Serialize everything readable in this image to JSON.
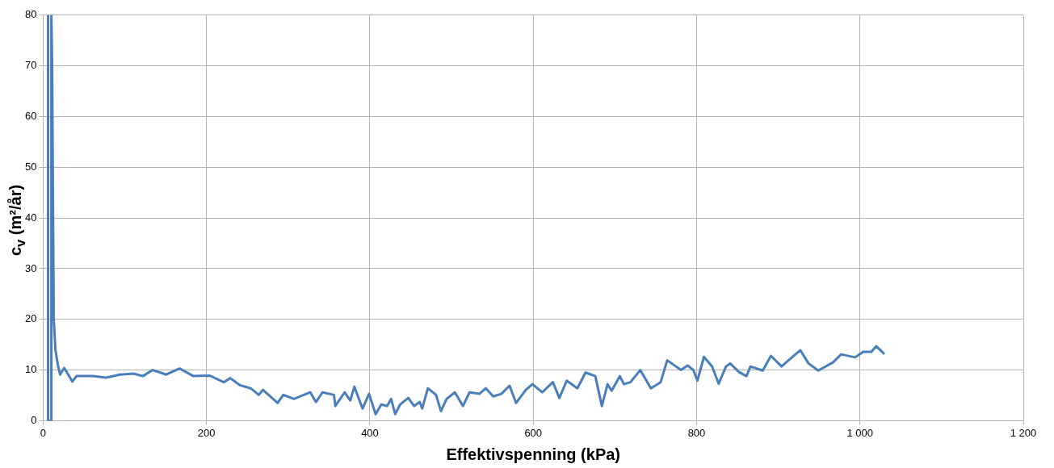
{
  "chart_data": {
    "type": "line",
    "xlabel": "Effektivspenning (kPa)",
    "ylabel": "c$_{v}$ (m²/år)",
    "xlim": [
      0,
      1200
    ],
    "xticks": [
      0,
      200,
      400,
      600,
      800,
      {
        "value": 1000,
        "label": "1 000"
      },
      {
        "value": 1200,
        "label": "1 200"
      }
    ],
    "ylim": [
      0,
      80
    ],
    "yticks": [
      0,
      10,
      20,
      30,
      40,
      50,
      60,
      70,
      80
    ],
    "grid": true,
    "marker": "none",
    "line_style": "solid",
    "series": [
      {
        "color": "#4a7ebb",
        "x": [
          6,
          6,
          10,
          10,
          11,
          12,
          13,
          15,
          18,
          20.7,
          25.7,
          30.7,
          35.7,
          40.7,
          60.7,
          77,
          94,
          110.7,
          122,
          134,
          150.7,
          167,
          184,
          204,
          221,
          229,
          241,
          254,
          264,
          269,
          287,
          294,
          307,
          327,
          334,
          342,
          356,
          357.7,
          369,
          376,
          381,
          391,
          399,
          407,
          414,
          421,
          426,
          431,
          437,
          447,
          454,
          461,
          464,
          471,
          481,
          487,
          494,
          504,
          514,
          522,
          534,
          542,
          551,
          561,
          571,
          579,
          591,
          599,
          611,
          624,
          632,
          641,
          654,
          664,
          676,
          684,
          691,
          696,
          706,
          711,
          719,
          731,
          744,
          756,
          764,
          781,
          789,
          796,
          801,
          809,
          819,
          827,
          836,
          841,
          852,
          861,
          866,
          881,
          891,
          904,
          919,
          927,
          937,
          949,
          967,
          977,
          994,
          1004,
          1014,
          1020,
          1029
        ],
        "values": [
          80,
          0,
          0,
          80,
          70,
          43,
          20,
          14,
          11,
          9.1,
          10.4,
          9.1,
          7.7,
          8.8,
          8.8,
          8.5,
          9.1,
          9.3,
          8.8,
          10,
          9.1,
          10.3,
          8.8,
          8.9,
          7.6,
          8.4,
          7,
          6.4,
          5.1,
          6.1,
          3.5,
          5.1,
          4.3,
          5.6,
          3.7,
          5.6,
          5.1,
          2.9,
          5.6,
          4,
          6.7,
          2.4,
          5.3,
          1.3,
          3.2,
          2.9,
          4.3,
          1.3,
          3.2,
          4.5,
          2.9,
          3.7,
          2.4,
          6.4,
          5.1,
          1.9,
          4.3,
          5.6,
          2.9,
          5.6,
          5.3,
          6.4,
          4.8,
          5.3,
          6.9,
          3.5,
          6.1,
          7.2,
          5.6,
          7.6,
          4.5,
          7.9,
          6.4,
          9.5,
          8.8,
          2.9,
          7.2,
          5.9,
          8.8,
          7.2,
          7.6,
          10,
          6.4,
          7.6,
          11.9,
          10,
          10.9,
          10,
          7.9,
          12.6,
          10.7,
          7.3,
          10.7,
          11.3,
          9.6,
          8.8,
          10.7,
          9.9,
          12.8,
          10.7,
          12.8,
          13.9,
          11.3,
          9.9,
          11.5,
          13.1,
          12.5,
          13.6,
          13.6,
          14.7,
          13.3
        ]
      }
    ]
  }
}
